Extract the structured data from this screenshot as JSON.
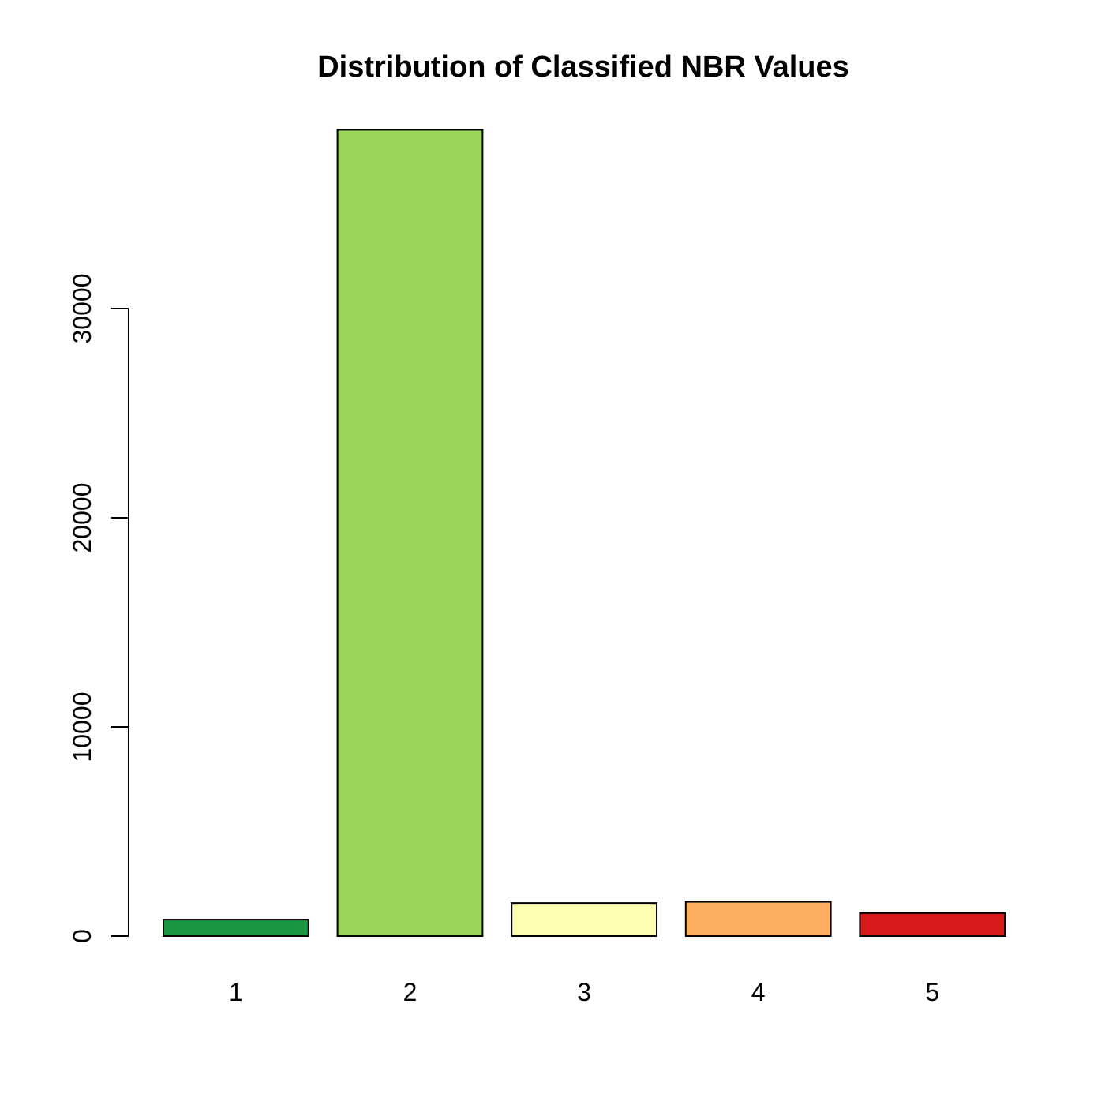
{
  "chart_data": {
    "type": "bar",
    "title": "Distribution of Classified NBR Values",
    "xlabel": "",
    "ylabel": "",
    "categories": [
      "1",
      "2",
      "3",
      "4",
      "5"
    ],
    "values": [
      790,
      38550,
      1580,
      1640,
      1100
    ],
    "colors": [
      "#1a9641",
      "#9bd75d",
      "#ffffb2",
      "#fdae61",
      "#d7191c"
    ],
    "ylim": [
      0,
      40000
    ],
    "yticks": [
      0,
      10000,
      20000,
      30000
    ],
    "ytick_labels": [
      "0",
      "10000",
      "20000",
      "30000"
    ],
    "grid": false,
    "legend": "none"
  }
}
